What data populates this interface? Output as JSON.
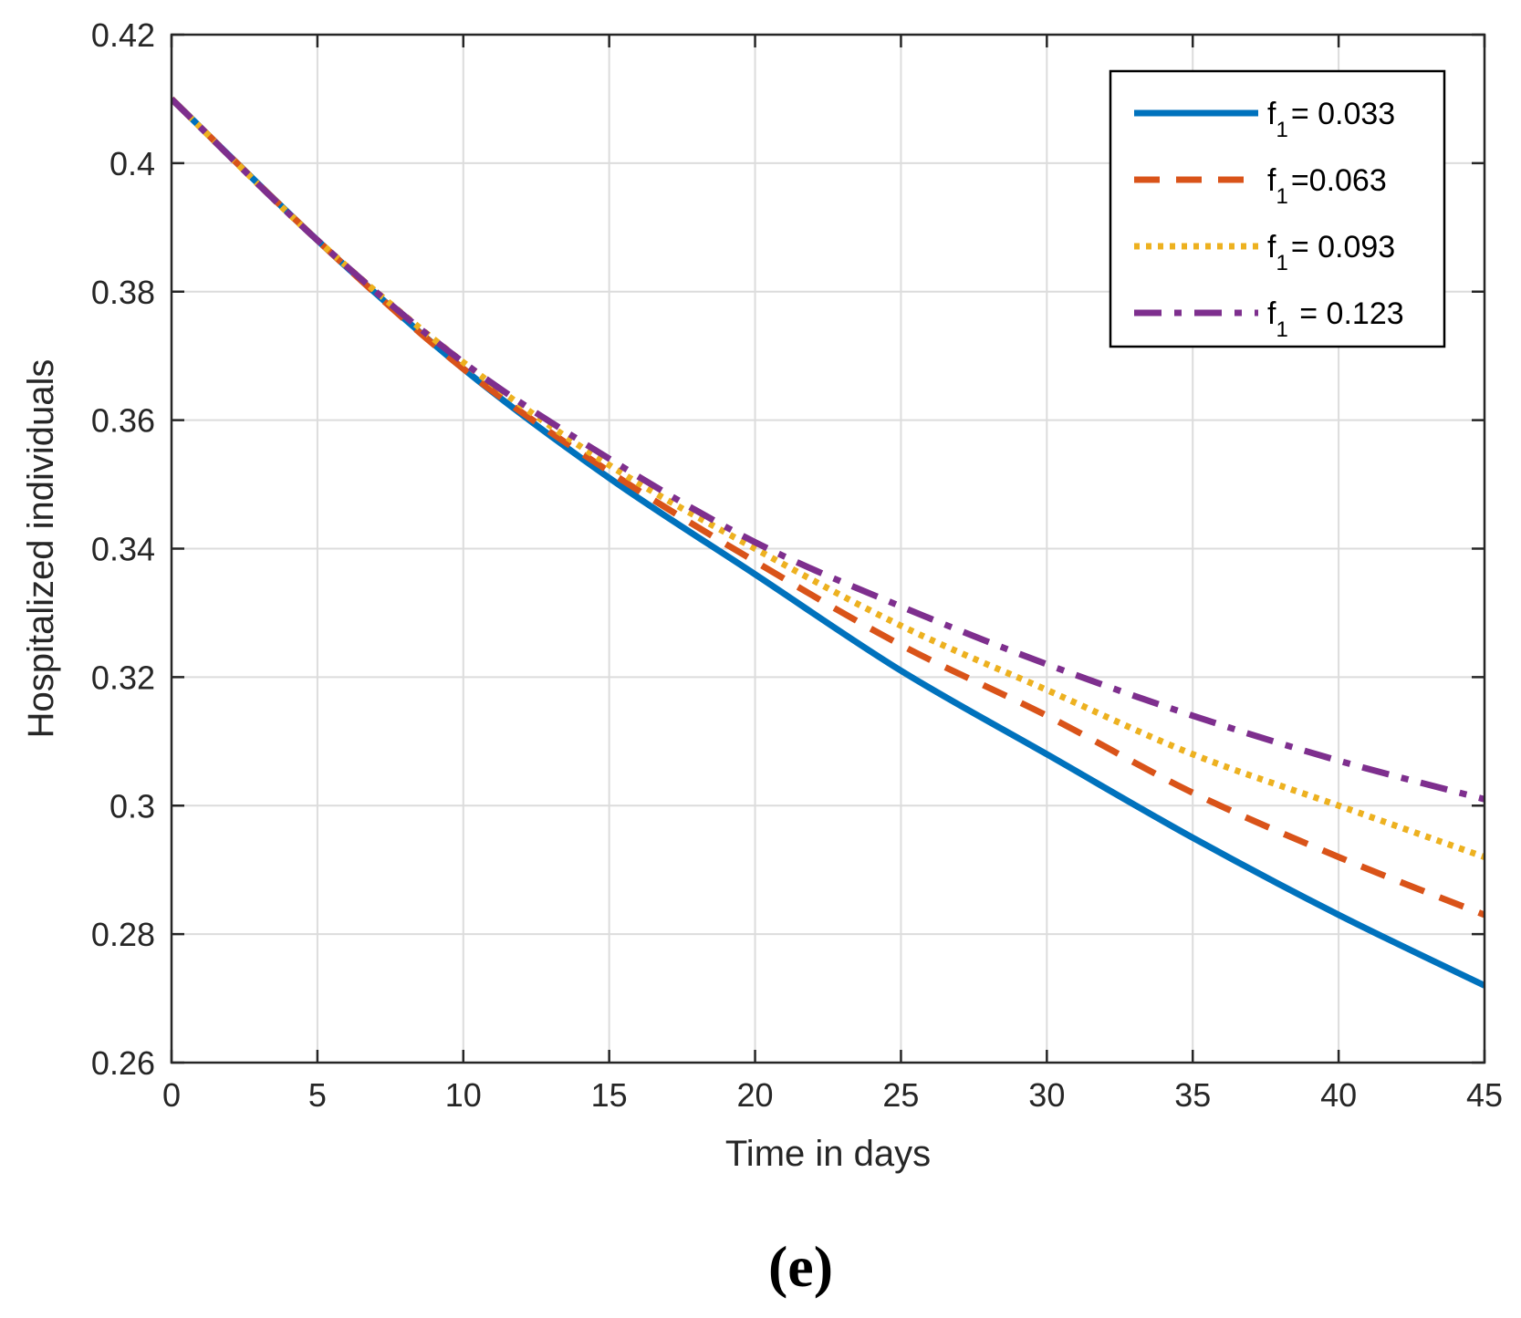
{
  "chart_data": {
    "type": "line",
    "title": "",
    "xlabel": "Time in days",
    "ylabel": "Hospitalized individuals",
    "xlim": [
      0,
      45
    ],
    "ylim": [
      0.26,
      0.42
    ],
    "x_ticks": [
      0,
      5,
      10,
      15,
      20,
      25,
      30,
      35,
      40,
      45
    ],
    "y_ticks": [
      0.26,
      0.28,
      0.3,
      0.32,
      0.34,
      0.36,
      0.38,
      0.4,
      0.42
    ],
    "x_tick_labels": [
      "0",
      "5",
      "10",
      "15",
      "20",
      "25",
      "30",
      "35",
      "40",
      "45"
    ],
    "y_tick_labels": [
      "0.26",
      "0.28",
      "0.3",
      "0.32",
      "0.34",
      "0.36",
      "0.38",
      "0.4",
      "0.42"
    ],
    "grid": true,
    "legend_position": "top-right",
    "x": [
      0,
      5,
      10,
      15,
      20,
      25,
      30,
      35,
      40,
      45
    ],
    "series": [
      {
        "name": "f1 = 0.033",
        "legend_main": "f",
        "legend_sub": "1",
        "legend_rest": "= 0.033",
        "color": "#0072BD",
        "style": "solid",
        "values": [
          0.41,
          0.388,
          0.368,
          0.351,
          0.336,
          0.321,
          0.308,
          0.295,
          0.283,
          0.272
        ]
      },
      {
        "name": "f1 =0.063",
        "legend_main": "f",
        "legend_sub": "1",
        "legend_rest": "=0.063",
        "color": "#D95319",
        "style": "dashed",
        "values": [
          0.41,
          0.388,
          0.368,
          0.352,
          0.338,
          0.325,
          0.314,
          0.302,
          0.292,
          0.283
        ]
      },
      {
        "name": "f1 = 0.093",
        "legend_main": "f",
        "legend_sub": "1",
        "legend_rest": "= 0.093",
        "color": "#EDB120",
        "style": "dotted",
        "values": [
          0.41,
          0.388,
          0.369,
          0.353,
          0.34,
          0.328,
          0.318,
          0.308,
          0.3,
          0.292
        ]
      },
      {
        "name": "f1 = 0.123",
        "legend_main": "f",
        "legend_sub": "1",
        "legend_rest": " = 0.123",
        "color": "#7E2F8E",
        "style": "dashdot",
        "values": [
          0.41,
          0.388,
          0.369,
          0.354,
          0.341,
          0.331,
          0.322,
          0.314,
          0.307,
          0.301
        ]
      }
    ]
  },
  "caption": "(e)"
}
